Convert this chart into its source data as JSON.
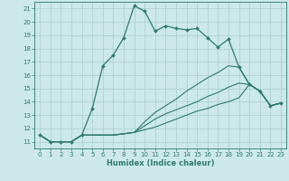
{
  "title": "",
  "xlabel": "Humidex (Indice chaleur)",
  "bg_color": "#cce8e8",
  "grid_color": "#aacccc",
  "line_color": "#2d7a6e",
  "xlim": [
    -0.5,
    23.5
  ],
  "ylim": [
    10.5,
    21.5
  ],
  "xticks": [
    0,
    1,
    2,
    3,
    4,
    5,
    6,
    7,
    8,
    9,
    10,
    11,
    12,
    13,
    14,
    15,
    16,
    17,
    18,
    19,
    20,
    21,
    22,
    23
  ],
  "yticks": [
    11,
    12,
    13,
    14,
    15,
    16,
    17,
    18,
    19,
    20,
    21
  ],
  "line1_x": [
    0,
    1,
    2,
    3,
    4,
    5,
    6,
    7,
    8,
    9,
    10,
    11,
    12,
    13,
    14,
    15,
    16,
    17,
    18,
    19,
    20,
    21,
    22,
    23
  ],
  "line1_y": [
    11.5,
    11.0,
    11.0,
    11.0,
    11.5,
    13.5,
    16.7,
    17.5,
    18.8,
    21.2,
    20.8,
    19.3,
    19.7,
    19.5,
    19.4,
    19.5,
    18.8,
    18.1,
    18.7,
    16.6,
    15.3,
    14.8,
    13.7,
    13.9
  ],
  "line2_x": [
    0,
    1,
    2,
    3,
    4,
    5,
    6,
    7,
    8,
    9,
    10,
    11,
    12,
    13,
    14,
    15,
    16,
    17,
    18,
    19,
    20,
    21,
    22,
    23
  ],
  "line2_y": [
    11.5,
    11.0,
    11.0,
    11.0,
    11.5,
    11.5,
    11.5,
    11.5,
    11.6,
    11.7,
    11.9,
    12.1,
    12.4,
    12.7,
    13.0,
    13.3,
    13.5,
    13.8,
    14.0,
    14.3,
    15.3,
    14.8,
    13.7,
    13.9
  ],
  "line3_x": [
    0,
    1,
    2,
    3,
    4,
    5,
    6,
    7,
    8,
    9,
    10,
    11,
    12,
    13,
    14,
    15,
    16,
    17,
    18,
    19,
    20,
    21,
    22,
    23
  ],
  "line3_y": [
    11.5,
    11.0,
    11.0,
    11.0,
    11.5,
    11.5,
    11.5,
    11.5,
    11.6,
    11.7,
    12.2,
    12.7,
    13.1,
    13.4,
    13.7,
    14.0,
    14.4,
    14.7,
    15.1,
    15.4,
    15.3,
    14.8,
    13.7,
    13.9
  ],
  "line4_x": [
    0,
    1,
    2,
    3,
    4,
    5,
    6,
    7,
    8,
    9,
    10,
    11,
    12,
    13,
    14,
    15,
    16,
    17,
    18,
    19,
    20,
    21,
    22,
    23
  ],
  "line4_y": [
    11.5,
    11.0,
    11.0,
    11.0,
    11.5,
    11.5,
    11.5,
    11.5,
    11.6,
    11.7,
    12.5,
    13.2,
    13.7,
    14.2,
    14.8,
    15.3,
    15.8,
    16.2,
    16.7,
    16.6,
    15.3,
    14.8,
    13.7,
    13.9
  ]
}
